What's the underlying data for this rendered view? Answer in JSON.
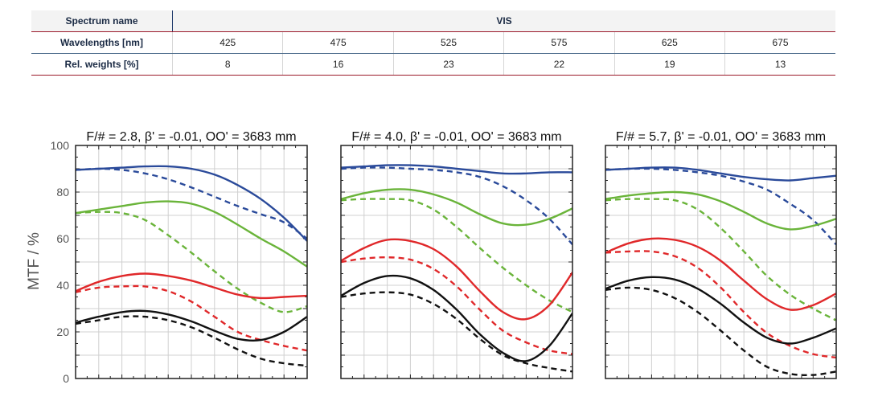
{
  "table": {
    "spectrum_label": "Spectrum name",
    "spectrum_value": "VIS",
    "wavelength_label": "Wavelengths [nm]",
    "wavelengths": [
      "425",
      "475",
      "525",
      "575",
      "625",
      "675"
    ],
    "weight_label": "Rel. weights [%]",
    "weights": [
      "8",
      "16",
      "23",
      "22",
      "19",
      "13"
    ]
  },
  "chart_data": {
    "type": "line",
    "ylabel": "MTF / %",
    "ylim": [
      0,
      100
    ],
    "yticks": [
      0,
      20,
      40,
      60,
      80,
      100
    ],
    "grid": true,
    "colors": {
      "blue": "#2a4a9a",
      "green": "#6ab43a",
      "red": "#e0282a",
      "black": "#111111"
    },
    "x": [
      0,
      0.1,
      0.2,
      0.3,
      0.4,
      0.5,
      0.6,
      0.7,
      0.8,
      0.9,
      1.0
    ],
    "panels": [
      {
        "title": "F/# = 2.8, β' = -0.01, OO' = 3683 mm",
        "series": [
          {
            "color": "blue",
            "style": "solid",
            "values": [
              89.5,
              90,
              90.5,
              91,
              91,
              90,
              87.5,
              83,
              77,
              69,
              59
            ]
          },
          {
            "color": "blue",
            "style": "dashed",
            "values": [
              89.5,
              90,
              89.5,
              88,
              85.5,
              82,
              78,
              74,
              70.5,
              67,
              60
            ]
          },
          {
            "color": "green",
            "style": "solid",
            "values": [
              71,
              72.5,
              74,
              75.5,
              76,
              75,
              71.5,
              66,
              60,
              54.5,
              48
            ]
          },
          {
            "color": "green",
            "style": "dashed",
            "values": [
              71,
              71.5,
              71,
              68,
              61.5,
              54,
              46,
              38.5,
              32.5,
              28.5,
              31
            ]
          },
          {
            "color": "red",
            "style": "solid",
            "values": [
              37.5,
              41.5,
              44,
              45,
              44,
              42,
              39,
              36,
              34.5,
              35,
              35.5
            ]
          },
          {
            "color": "red",
            "style": "dashed",
            "values": [
              37,
              39,
              39.5,
              39.5,
              37.5,
              33,
              26.5,
              20,
              16.5,
              14,
              12
            ]
          },
          {
            "color": "black",
            "style": "solid",
            "values": [
              24,
              26.5,
              28.5,
              29,
              27.5,
              24.5,
              20.5,
              17,
              16.5,
              20,
              26.5
            ]
          },
          {
            "color": "black",
            "style": "dashed",
            "values": [
              23.5,
              25,
              26.5,
              26.5,
              25,
              22,
              17.5,
              12.5,
              8.5,
              6.5,
              5.5
            ]
          }
        ]
      },
      {
        "title": "F/# = 4.0, β' = -0.01, OO' = 3683 mm",
        "series": [
          {
            "color": "blue",
            "style": "solid",
            "values": [
              90.5,
              91,
              91.5,
              91.5,
              91,
              90,
              89,
              88,
              88,
              88.5,
              88.5
            ]
          },
          {
            "color": "blue",
            "style": "dashed",
            "values": [
              90,
              90.5,
              90.5,
              90,
              89.5,
              88.5,
              86.5,
              82.5,
              76.5,
              68.5,
              57.5
            ]
          },
          {
            "color": "green",
            "style": "solid",
            "values": [
              77,
              79.5,
              81,
              81,
              79,
              75.5,
              70.5,
              66.5,
              66,
              68.5,
              73
            ]
          },
          {
            "color": "green",
            "style": "dashed",
            "values": [
              76.5,
              77,
              77,
              76.5,
              72.5,
              65,
              56,
              47.5,
              40,
              33.5,
              28.5
            ]
          },
          {
            "color": "red",
            "style": "solid",
            "values": [
              50.5,
              56,
              59.5,
              59,
              55.5,
              48,
              37.5,
              28.5,
              25.5,
              31.5,
              45.5
            ]
          },
          {
            "color": "red",
            "style": "dashed",
            "values": [
              50,
              51.5,
              52,
              51,
              47,
              39.5,
              29.5,
              20.5,
              15.5,
              12,
              10.5
            ]
          },
          {
            "color": "black",
            "style": "solid",
            "values": [
              35.5,
              41,
              44,
              43,
              38,
              29.5,
              19,
              11,
              7.5,
              14,
              28
            ]
          },
          {
            "color": "black",
            "style": "dashed",
            "values": [
              35,
              36.5,
              37,
              36,
              32,
              25.5,
              17,
              10,
              6.5,
              4.5,
              3
            ]
          }
        ]
      },
      {
        "title": "F/# = 5.7, β' = -0.01, OO' = 3683 mm",
        "series": [
          {
            "color": "blue",
            "style": "solid",
            "values": [
              89.5,
              90,
              90.5,
              90.5,
              89.5,
              88,
              86.5,
              85.5,
              85,
              86,
              87
            ]
          },
          {
            "color": "blue",
            "style": "dashed",
            "values": [
              89.5,
              90,
              90,
              89.5,
              88.5,
              87,
              84.5,
              81,
              75,
              68,
              57.5
            ]
          },
          {
            "color": "green",
            "style": "solid",
            "values": [
              77,
              78.5,
              79.5,
              80,
              79,
              76,
              71.5,
              66.5,
              64,
              65.5,
              68.5
            ]
          },
          {
            "color": "green",
            "style": "dashed",
            "values": [
              76.5,
              77,
              77,
              76.5,
              72.5,
              64.5,
              54.5,
              44,
              36,
              30,
              25
            ]
          },
          {
            "color": "red",
            "style": "solid",
            "values": [
              54,
              58,
              60,
              59.5,
              56.5,
              50.5,
              42,
              34,
              29.5,
              31.5,
              36.5
            ]
          },
          {
            "color": "red",
            "style": "dashed",
            "values": [
              54,
              54.5,
              54.5,
              52.5,
              47.5,
              39,
              28.5,
              19.5,
              14,
              10.5,
              9
            ]
          },
          {
            "color": "black",
            "style": "solid",
            "values": [
              38.5,
              42,
              43.5,
              42.5,
              38.5,
              32,
              24,
              17.5,
              15,
              17.5,
              21.5
            ]
          },
          {
            "color": "black",
            "style": "dashed",
            "values": [
              38,
              39,
              38,
              34.5,
              28.5,
              20.5,
              12,
              5,
              2,
              1.5,
              3
            ]
          }
        ]
      }
    ]
  }
}
